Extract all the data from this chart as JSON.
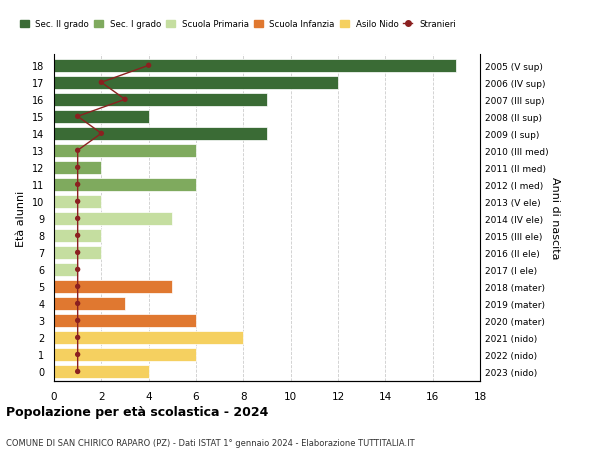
{
  "ages": [
    18,
    17,
    16,
    15,
    14,
    13,
    12,
    11,
    10,
    9,
    8,
    7,
    6,
    5,
    4,
    3,
    2,
    1,
    0
  ],
  "years": [
    "2005 (V sup)",
    "2006 (IV sup)",
    "2007 (III sup)",
    "2008 (II sup)",
    "2009 (I sup)",
    "2010 (III med)",
    "2011 (II med)",
    "2012 (I med)",
    "2013 (V ele)",
    "2014 (IV ele)",
    "2015 (III ele)",
    "2016 (II ele)",
    "2017 (I ele)",
    "2018 (mater)",
    "2019 (mater)",
    "2020 (mater)",
    "2021 (nido)",
    "2022 (nido)",
    "2023 (nido)"
  ],
  "values": [
    17,
    12,
    9,
    4,
    9,
    6,
    2,
    6,
    2,
    5,
    2,
    2,
    1,
    5,
    3,
    6,
    8,
    6,
    4
  ],
  "stranieri": [
    4,
    2,
    3,
    1,
    2,
    1,
    1,
    1,
    1,
    1,
    1,
    1,
    1,
    1,
    1,
    1,
    1,
    1,
    1
  ],
  "colors": {
    "sec2": "#3a6b35",
    "sec1": "#7faa5e",
    "primaria": "#c5dea0",
    "infanzia": "#e07830",
    "nido": "#f5d060",
    "stranieri": "#8b2020"
  },
  "legend_labels": [
    "Sec. II grado",
    "Sec. I grado",
    "Scuola Primaria",
    "Scuola Infanzia",
    "Asilo Nido",
    "Stranieri"
  ],
  "title": "Popolazione per età scolastica - 2024",
  "subtitle": "COMUNE DI SAN CHIRICO RAPARO (PZ) - Dati ISTAT 1° gennaio 2024 - Elaborazione TUTTITALIA.IT",
  "ylabel": "Età alunni",
  "ylabel_right": "Anni di nascita",
  "xlim": [
    0,
    18
  ]
}
